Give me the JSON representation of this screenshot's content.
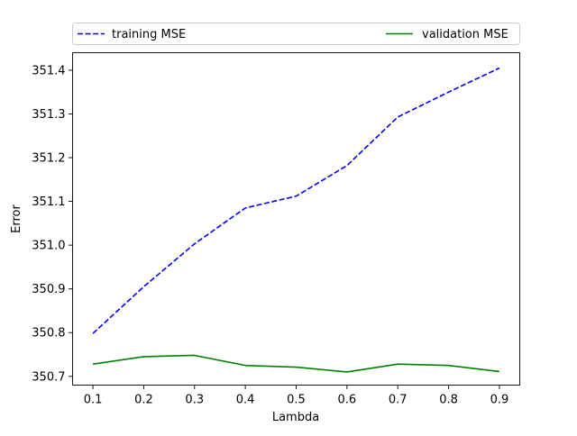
{
  "chart_data": {
    "type": "line",
    "title": "",
    "xlabel": "Lambda",
    "ylabel": "Error",
    "x": [
      0.1,
      0.2,
      0.3,
      0.4,
      0.5,
      0.6,
      0.7,
      0.8,
      0.9
    ],
    "xlim": [
      0.06,
      0.94
    ],
    "ylim": [
      350.68,
      351.44
    ],
    "x_ticks": [
      "0.1",
      "0.2",
      "0.3",
      "0.4",
      "0.5",
      "0.6",
      "0.7",
      "0.8",
      "0.9"
    ],
    "y_ticks": [
      "350.7",
      "350.8",
      "350.9",
      "351.0",
      "351.1",
      "351.2",
      "351.3",
      "351.4"
    ],
    "grid": false,
    "legend_position": "top, above plot, two columns",
    "series": [
      {
        "name": "training MSE",
        "color": "#0000ff",
        "style": "dashed",
        "values": [
          350.798,
          350.905,
          351.003,
          351.085,
          351.112,
          351.182,
          351.293,
          351.35,
          351.405
        ]
      },
      {
        "name": "validation MSE",
        "color": "#008000",
        "style": "solid",
        "values": [
          350.728,
          350.745,
          350.748,
          350.725,
          350.721,
          350.71,
          350.728,
          350.725,
          350.711
        ]
      }
    ]
  }
}
